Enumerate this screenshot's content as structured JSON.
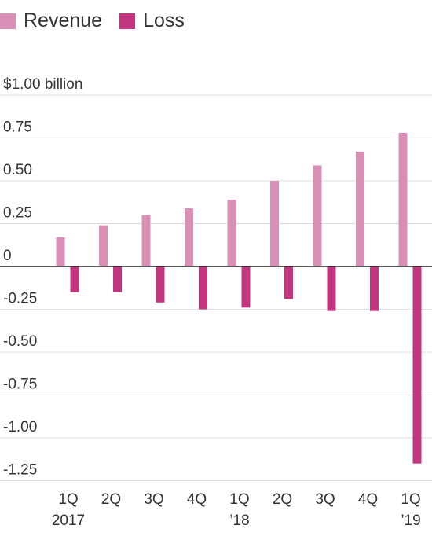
{
  "chart_data": {
    "type": "bar",
    "categories": [
      "1Q 2017",
      "2Q",
      "3Q",
      "4Q",
      "1Q '18",
      "2Q",
      "3Q",
      "4Q",
      "1Q '19"
    ],
    "x_tick_lines": [
      [
        "1Q",
        "2017"
      ],
      [
        "2Q",
        ""
      ],
      [
        "3Q",
        ""
      ],
      [
        "4Q",
        ""
      ],
      [
        "1Q",
        "’18"
      ],
      [
        "2Q",
        ""
      ],
      [
        "3Q",
        ""
      ],
      [
        "4Q",
        ""
      ],
      [
        "1Q",
        "’19"
      ]
    ],
    "series": [
      {
        "name": "Revenue",
        "color": "#d98fb6",
        "values": [
          0.17,
          0.24,
          0.3,
          0.34,
          0.39,
          0.5,
          0.59,
          0.67,
          0.78
        ]
      },
      {
        "name": "Loss",
        "color": "#c2357f",
        "values": [
          -0.15,
          -0.15,
          -0.21,
          -0.25,
          -0.24,
          -0.19,
          -0.26,
          -0.26,
          -1.15
        ]
      }
    ],
    "y_ticks": [
      1.0,
      0.75,
      0.5,
      0.25,
      0,
      -0.25,
      -0.5,
      -0.75,
      -1.0,
      -1.25
    ],
    "y_tick_labels": [
      "$1.00 billion",
      "0.75",
      "0.50",
      "0.25",
      "0",
      "-0.25",
      "-0.50",
      "-0.75",
      "-1.00",
      "-1.25"
    ],
    "ylim": [
      -1.25,
      1.0
    ],
    "grid": true,
    "legend_position": "top-left",
    "title": "",
    "xlabel": "",
    "ylabel": ""
  }
}
